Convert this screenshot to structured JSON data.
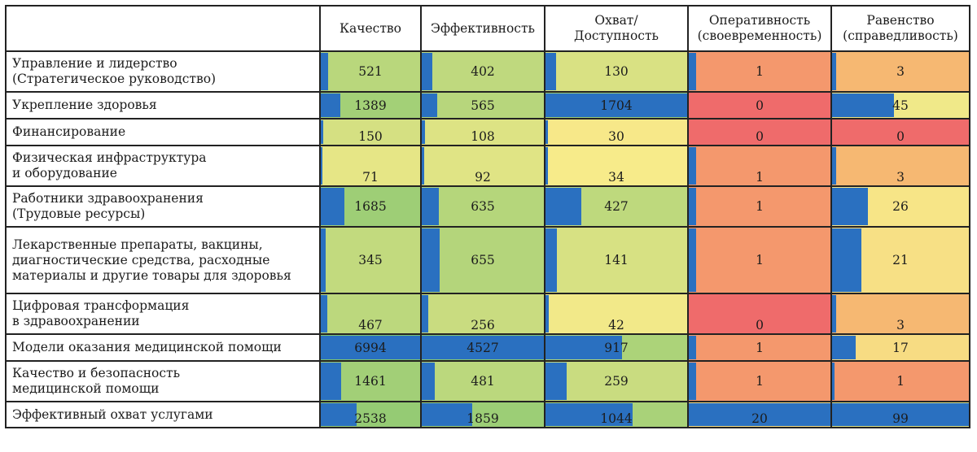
{
  "chart_data": {
    "type": "heatmap",
    "columns": [
      "Качество",
      "Эффективность",
      "Охват/\nДоступность",
      "Оперативность\n(своевременность)",
      "Равенство\n(справедливость)"
    ],
    "rows": [
      "Управление и лидерство\n(Стратегическое руководство)",
      "Укрепление здоровья",
      "Финансирование",
      "Физическая инфраструктура\nи оборудование",
      "Работники здравоохранения\n(Трудовые ресурсы)",
      "Лекарственные препараты, вакцины,\nдиагностические средства, расходные\nматериалы и другие товары для здоровья",
      "Цифровая трансформация\nв здравоохранении",
      "Модели оказания медицинской помощи",
      "Качество и безопасность\nмедицинской помощи",
      "Эффективный охват услугами"
    ],
    "values": [
      [
        521,
        402,
        130,
        1,
        3
      ],
      [
        1389,
        565,
        1704,
        0,
        45
      ],
      [
        150,
        108,
        30,
        0,
        0
      ],
      [
        71,
        92,
        34,
        1,
        3
      ],
      [
        1685,
        635,
        427,
        1,
        26
      ],
      [
        345,
        655,
        141,
        1,
        21
      ],
      [
        467,
        256,
        42,
        0,
        3
      ],
      [
        6994,
        4527,
        917,
        1,
        17
      ],
      [
        1461,
        481,
        259,
        1,
        1
      ],
      [
        2538,
        1859,
        1044,
        20,
        99
      ]
    ],
    "data_bars": true,
    "bar_color": "#2a70c0",
    "color_scale": {
      "low": "#ef6b6b",
      "mid": "#f7eb8a",
      "high": "#7ec46f"
    }
  }
}
